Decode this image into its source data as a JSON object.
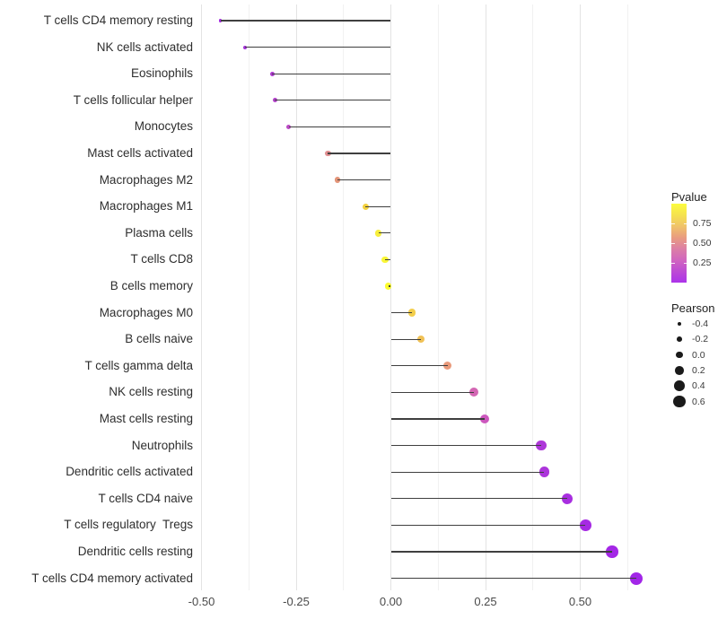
{
  "chart_data": {
    "type": "lollipop",
    "title": "",
    "xlabel": "",
    "ylabel": "",
    "orientation": "horizontal",
    "grid": "vertical-only",
    "x_axis": {
      "tick_labels": [
        "-0.50",
        "-0.25",
        "0.00",
        "0.25",
        "0.50"
      ],
      "tick_values": [
        -0.5,
        -0.25,
        0.0,
        0.25,
        0.5
      ],
      "minor_tick_values": [
        -0.375,
        -0.125,
        0.125,
        0.375,
        0.625
      ],
      "range": [
        -0.52,
        0.67
      ]
    },
    "baseline_value": 0.0,
    "segment_color": "#3f3f3f",
    "points": [
      {
        "label": "T cells CD4 memory resting",
        "pearson": -0.45,
        "pvalue_approx": 0.1,
        "color": "#a228e0"
      },
      {
        "label": "NK cells activated",
        "pearson": -0.386,
        "pvalue_approx": 0.13,
        "color": "#a430da"
      },
      {
        "label": "Eosinophils",
        "pearson": -0.313,
        "pvalue_approx": 0.18,
        "color": "#ae3ad0"
      },
      {
        "label": "T cells follicular helper",
        "pearson": -0.306,
        "pvalue_approx": 0.2,
        "color": "#b341cb"
      },
      {
        "label": "Monocytes",
        "pearson": -0.27,
        "pvalue_approx": 0.24,
        "color": "#bb4ac5"
      },
      {
        "label": "Mast cells activated",
        "pearson": -0.166,
        "pvalue_approx": 0.48,
        "color": "#e08e90"
      },
      {
        "label": "Macrophages M2",
        "pearson": -0.141,
        "pvalue_approx": 0.52,
        "color": "#e39478"
      },
      {
        "label": "Macrophages M1",
        "pearson": -0.067,
        "pvalue_approx": 0.7,
        "color": "#f3d13e"
      },
      {
        "label": "Plasma cells",
        "pearson": -0.033,
        "pvalue_approx": 0.82,
        "color": "#f7ee3c"
      },
      {
        "label": "T cells CD8",
        "pearson": -0.015,
        "pvalue_approx": 0.9,
        "color": "#faf636"
      },
      {
        "label": "B cells memory",
        "pearson": -0.007,
        "pvalue_approx": 0.97,
        "color": "#fcfc2f"
      },
      {
        "label": "Macrophages M0",
        "pearson": 0.056,
        "pvalue_approx": 0.68,
        "color": "#f3ce4b"
      },
      {
        "label": "B cells naive",
        "pearson": 0.079,
        "pvalue_approx": 0.63,
        "color": "#f0c156"
      },
      {
        "label": "T cells gamma delta",
        "pearson": 0.15,
        "pvalue_approx": 0.5,
        "color": "#e99a7b"
      },
      {
        "label": "NK cells resting",
        "pearson": 0.22,
        "pvalue_approx": 0.3,
        "color": "#d366b3"
      },
      {
        "label": "Mast cells resting",
        "pearson": 0.248,
        "pvalue_approx": 0.27,
        "color": "#cc57bd"
      },
      {
        "label": "Neutrophils",
        "pearson": 0.397,
        "pvalue_approx": 0.17,
        "color": "#ae38d9"
      },
      {
        "label": "Dendritic cells activated",
        "pearson": 0.405,
        "pvalue_approx": 0.16,
        "color": "#ac35db"
      },
      {
        "label": "T cells CD4 naive",
        "pearson": 0.466,
        "pvalue_approx": 0.13,
        "color": "#a82ee0"
      },
      {
        "label": "T cells regulatory  Tregs",
        "pearson": 0.514,
        "pvalue_approx": 0.11,
        "color": "#a62ae3"
      },
      {
        "label": "Dendritic cells resting",
        "pearson": 0.584,
        "pvalue_approx": 0.09,
        "color": "#a427e6"
      },
      {
        "label": "T cells CD4 memory activated",
        "pearson": 0.647,
        "pvalue_approx": 0.08,
        "color": "#a226e8"
      }
    ]
  },
  "legend_pvalue": {
    "title": "Pvalue",
    "tick_labels": [
      "0.75",
      "0.50",
      "0.25"
    ],
    "tick_values": [
      0.75,
      0.5,
      0.25
    ],
    "bar_range": [
      0.0,
      1.0
    ],
    "gradient_colors_top_to_bottom": [
      "#fcfc3f",
      "#f5e24e",
      "#f0c369",
      "#e99c80",
      "#dc7fa6",
      "#d166bf",
      "#bd4bd4",
      "#ac33ea"
    ]
  },
  "legend_pearson": {
    "title": "Pearson",
    "labels": [
      "-0.4",
      "-0.2",
      "0.0",
      "0.2",
      "0.4",
      "0.6"
    ],
    "values": [
      -0.4,
      -0.2,
      0.0,
      0.2,
      0.4,
      0.6
    ],
    "dot_color": "#1a1a1a"
  }
}
